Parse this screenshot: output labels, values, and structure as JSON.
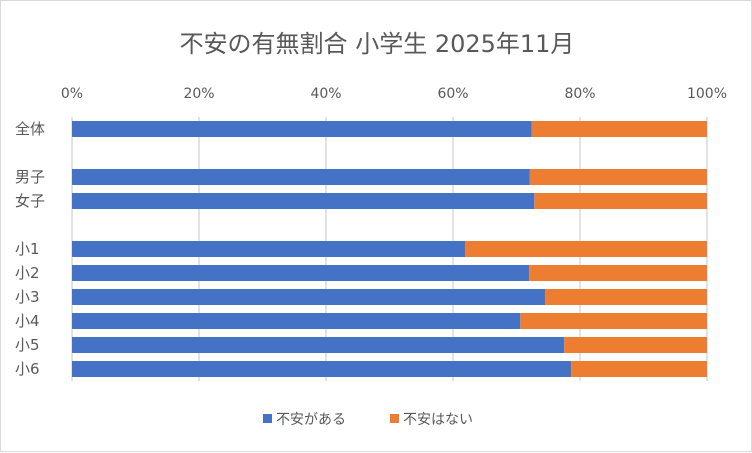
{
  "chart_data": {
    "type": "bar",
    "orientation": "horizontal",
    "stacked": "percent",
    "title": "不安の有無割合 小学生 2025年11月",
    "categories": [
      "全体",
      "",
      "男子",
      "女子",
      "",
      "小1",
      "小2",
      "小3",
      "小4",
      "小5",
      "小6"
    ],
    "series": [
      {
        "name": "不安がある",
        "color": "#4472C4",
        "values": [
          72.4,
          null,
          72.1,
          72.8,
          null,
          61.9,
          72.0,
          74.5,
          70.6,
          77.5,
          78.6
        ]
      },
      {
        "name": "不安はない",
        "color": "#ED7D31",
        "values": [
          27.6,
          null,
          27.9,
          27.2,
          null,
          38.1,
          28.0,
          25.5,
          29.4,
          22.5,
          21.4
        ]
      }
    ],
    "xlim": [
      0,
      100
    ],
    "x_ticks": [
      "0%",
      "20%",
      "40%",
      "60%",
      "80%",
      "100%"
    ],
    "x_axis_position": "top",
    "grid": true,
    "legend": "bottom"
  }
}
